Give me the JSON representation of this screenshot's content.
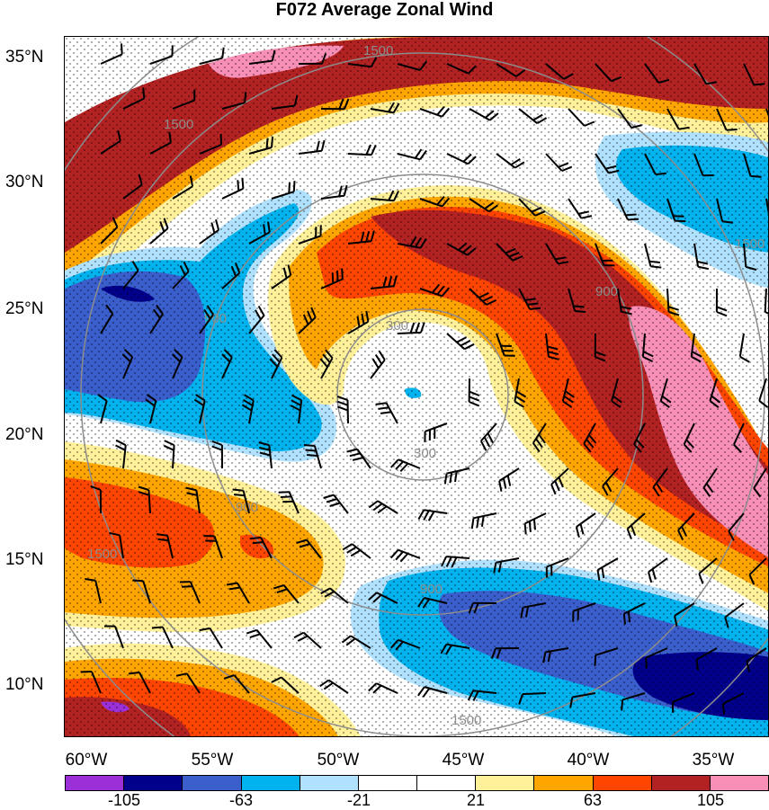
{
  "title": "F072 Average Zonal Wind",
  "lat_labels": [
    "35°N",
    "30°N",
    "25°N",
    "20°N",
    "15°N",
    "10°N"
  ],
  "lon_labels": [
    "60°W",
    "55°W",
    "50°W",
    "45°W",
    "40°W",
    "35°W"
  ],
  "colorbar": {
    "labels": [
      "-105",
      "-63",
      "-21",
      "21",
      "63",
      "105"
    ],
    "colors": [
      "#9b30d9",
      "#00008b",
      "#3a5fcd",
      "#00b2ee",
      "#b0e2ff",
      "#ffffff",
      "#ffffff",
      "#fff09a",
      "#ffa500",
      "#ff4500",
      "#b22222",
      "#f78fb6"
    ]
  },
  "range_ring_labels": [
    "300",
    "300",
    "900",
    "900",
    "900",
    "900",
    "1500",
    "1500",
    "1500",
    "1500",
    "1500"
  ],
  "wind_colors": {
    "strong_pos": "#b22222",
    "pos2": "#ff4500",
    "pos3": "#ffa500",
    "pos4": "#fff09a",
    "pink": "#f78fb6",
    "neg1": "#b0e2ff",
    "neg2": "#00b2ee",
    "neg3": "#3a5fcd",
    "neg4": "#00008b",
    "ring": "#8c8c8c"
  }
}
